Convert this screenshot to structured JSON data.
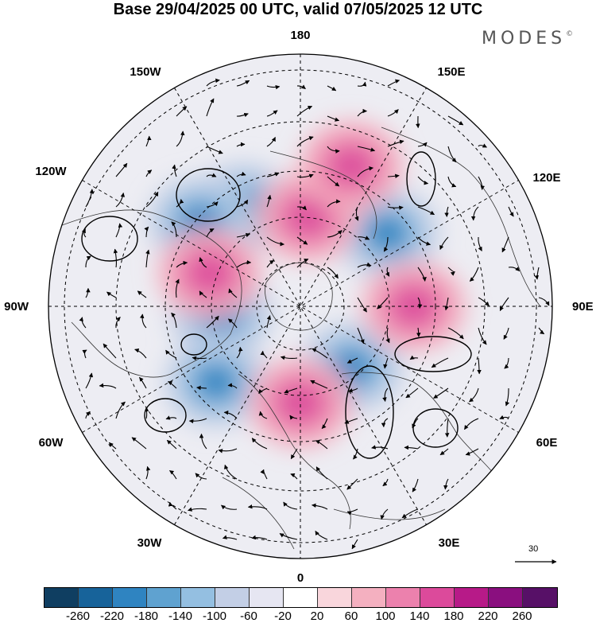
{
  "title": "Base 29/04/2025 00 UTC, valid 07/05/2025 12 UTC",
  "brand": "MODES",
  "brand_mark": "©",
  "longitude_labels": [
    "180",
    "150E",
    "120E",
    "90E",
    "60E",
    "30E",
    "0",
    "30W",
    "60W",
    "90W",
    "120W",
    "150W"
  ],
  "vector_reference": "30",
  "colorbar": {
    "colors": [
      "#0f3e61",
      "#17639a",
      "#2f84c1",
      "#5fa2d0",
      "#94bfe1",
      "#c3cfe6",
      "#e6e6f2",
      "#ffffff",
      "#f9d6dc",
      "#f4b0c0",
      "#ec81ad",
      "#dc4a9b",
      "#b71a88",
      "#8a0f7f",
      "#571067"
    ],
    "ticks": [
      "-260",
      "-220",
      "-180",
      "-140",
      "-100",
      "-60",
      "-20",
      "20",
      "60",
      "100",
      "140",
      "180",
      "220",
      "260"
    ]
  },
  "chart_data": {
    "type": "map",
    "projection": "north polar stereographic",
    "field": "anomaly with vector arrows",
    "anomaly_centers": [
      {
        "sign": "negative",
        "lon": -150,
        "lat": 55
      },
      {
        "sign": "negative",
        "lon": 130,
        "lat": 55
      },
      {
        "sign": "negative",
        "lon": 40,
        "lat": 65
      },
      {
        "sign": "negative",
        "lon": -85,
        "lat": 65
      },
      {
        "sign": "negative",
        "lon": -48,
        "lat": 55
      },
      {
        "sign": "negative",
        "lon": -130,
        "lat": 50
      },
      {
        "sign": "positive",
        "lon": -110,
        "lat": 60
      },
      {
        "sign": "positive",
        "lon": 90,
        "lat": 55
      },
      {
        "sign": "positive",
        "lon": 0,
        "lat": 60
      },
      {
        "sign": "positive",
        "lon": 175,
        "lat": 62
      },
      {
        "sign": "positive",
        "lon": 160,
        "lat": 45
      }
    ]
  }
}
